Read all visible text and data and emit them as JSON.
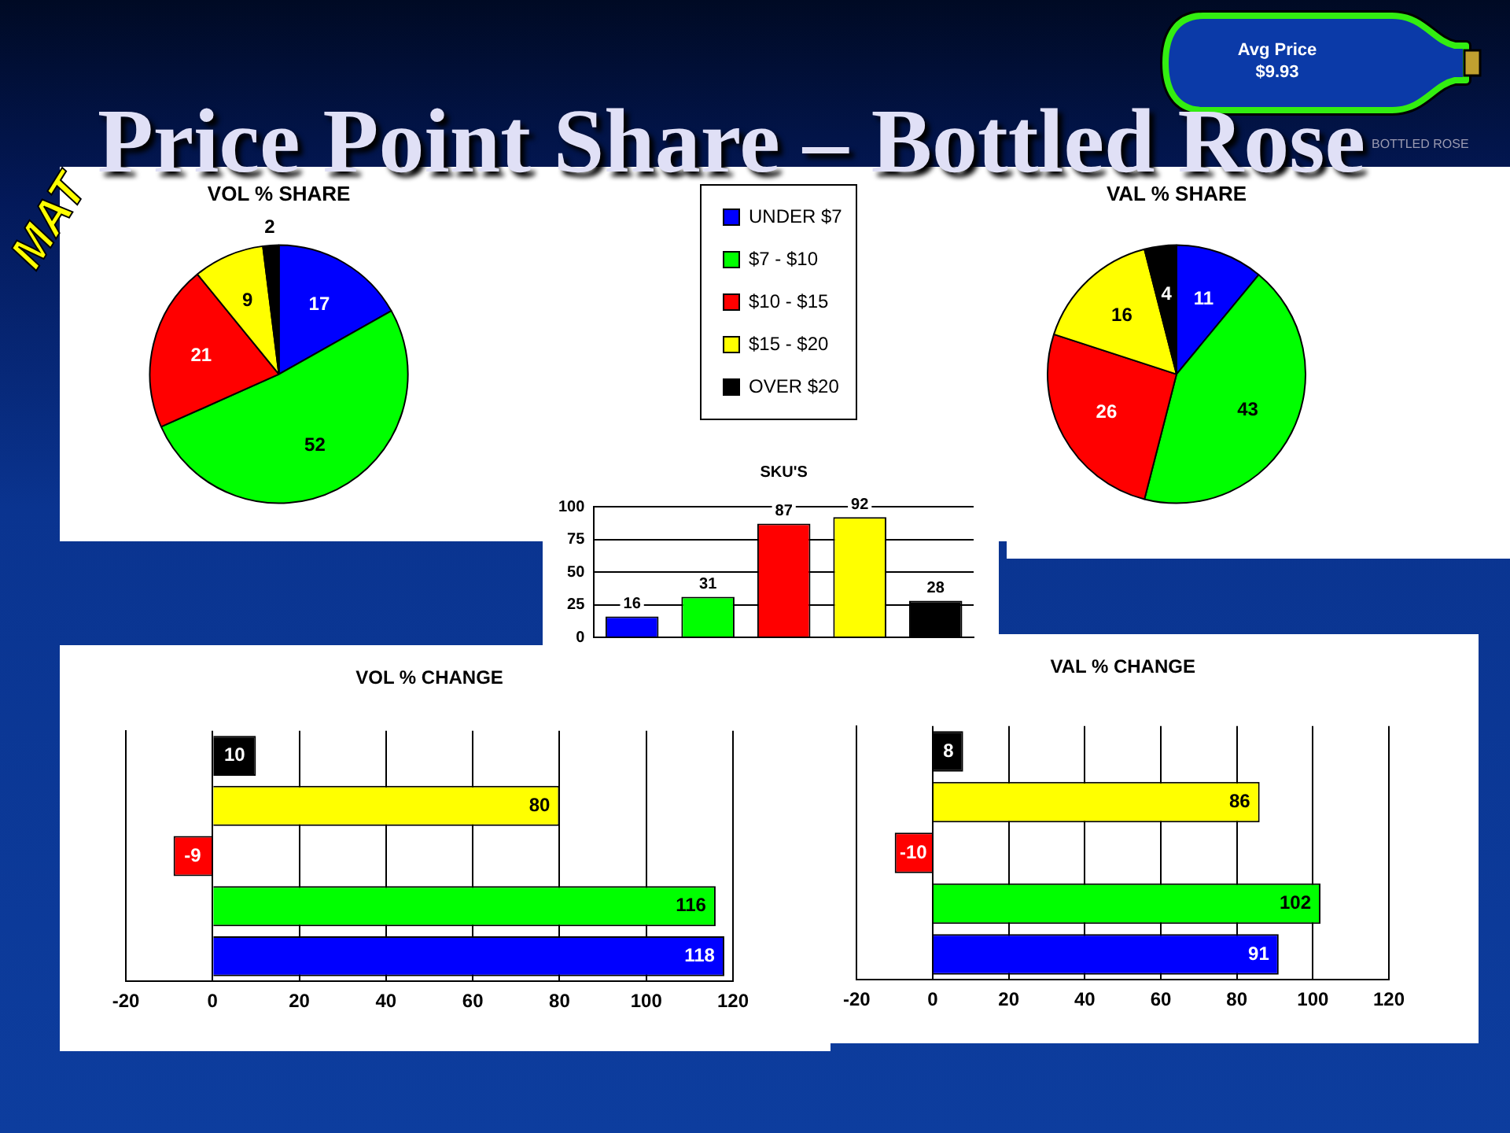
{
  "chart_data": [
    {
      "type": "other",
      "title": "Price Point Share – Bottled Rose",
      "annotations": [
        "MAT",
        "Avg Price",
        "$9.93",
        "BOTTLED ROSE"
      ]
    },
    {
      "type": "pie",
      "title": "VOL % SHARE",
      "categories": [
        "UNDER $7",
        "$7 - $10",
        "$10 - $15",
        "$15 - $20",
        "OVER $20"
      ],
      "values": [
        17,
        52,
        21,
        9,
        2
      ],
      "colors": [
        "#0000ff",
        "#00ff00",
        "#ff0000",
        "#ffff00",
        "#000000"
      ],
      "data_labels": true,
      "legend": "right"
    },
    {
      "type": "pie",
      "title": "VAL % SHARE",
      "categories": [
        null,
        null,
        null,
        null,
        null
      ],
      "values": [
        11,
        43,
        26,
        16,
        4
      ],
      "colors": [
        "#0000ff",
        "#00ff00",
        "#ff0000",
        "#ffff00",
        "#000000"
      ],
      "data_labels": true
    },
    {
      "type": "bar",
      "title": "SKU'S",
      "categories": [
        null,
        null,
        null,
        null,
        null
      ],
      "values": [
        16,
        31,
        87,
        92,
        28
      ],
      "colors": [
        "#0000ff",
        "#00ff00",
        "#ff0000",
        "#ffff00",
        "#000000"
      ],
      "ylim": [
        0,
        100
      ],
      "yticks": [
        0,
        25,
        50,
        75,
        100
      ],
      "grid": "y",
      "tick_labels": "y",
      "data_labels": true
    },
    {
      "type": "bar",
      "orientation": "horizontal",
      "title": "VOL % CHANGE",
      "categories": [
        null,
        null,
        null,
        null,
        null
      ],
      "values": [
        10,
        80,
        -9,
        116,
        118
      ],
      "colors": [
        "#000000",
        "#ffff00",
        "#ff0000",
        "#00ff00",
        "#0000ff"
      ],
      "xlim": [
        -20,
        120
      ],
      "xticks": [
        -20,
        0,
        20,
        40,
        60,
        80,
        100,
        120
      ],
      "grid": "x",
      "tick_labels": "x",
      "data_labels": true
    },
    {
      "type": "bar",
      "orientation": "horizontal",
      "title": "VAL % CHANGE",
      "categories": [
        null,
        null,
        null,
        null,
        null
      ],
      "values": [
        8,
        86,
        -10,
        102,
        91
      ],
      "colors": [
        "#000000",
        "#ffff00",
        "#ff0000",
        "#00ff00",
        "#0000ff"
      ],
      "xlim": [
        -20,
        120
      ],
      "xticks": [
        -20,
        0,
        20,
        40,
        60,
        80,
        100,
        120
      ],
      "grid": "x",
      "tick_labels": "x",
      "data_labels": true
    }
  ]
}
